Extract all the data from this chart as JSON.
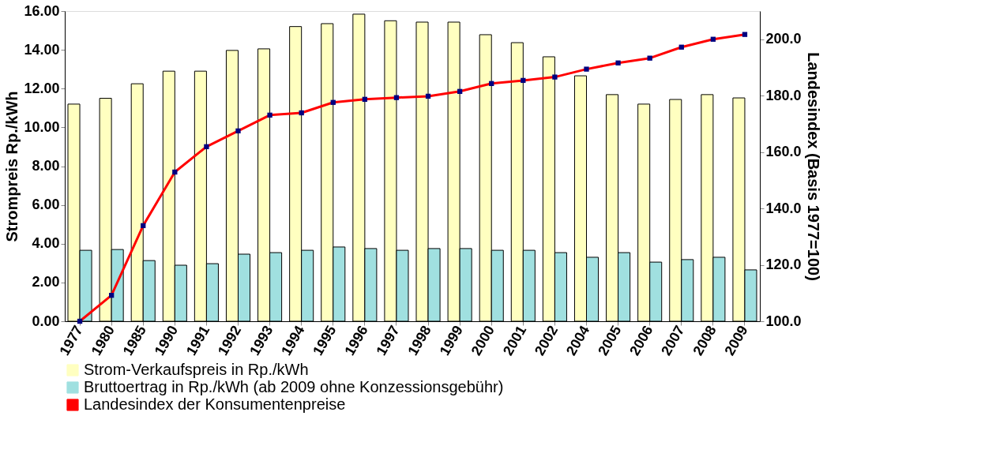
{
  "chart_data": {
    "type": "bar",
    "categories": [
      "1977",
      "1980",
      "1985",
      "1990",
      "1991",
      "1992",
      "1993",
      "1994",
      "1995",
      "1996",
      "1997",
      "1998",
      "1999",
      "2000",
      "2001",
      "2002",
      "2004",
      "2005",
      "2006",
      "2007",
      "2008",
      "2009"
    ],
    "ylabel": "Strompreis Rp./kWh",
    "y2label": "Landesindex (Basis 1977=100)",
    "ylim": [
      0,
      16
    ],
    "yticks": [
      {
        "value": 0,
        "label": "0.00"
      },
      {
        "value": 2,
        "label": "2.00"
      },
      {
        "value": 4,
        "label": "4.00"
      },
      {
        "value": 6,
        "label": "6.00"
      },
      {
        "value": 8,
        "label": "8.00"
      },
      {
        "value": 10,
        "label": "10.00"
      },
      {
        "value": 12,
        "label": "12.00"
      },
      {
        "value": 14,
        "label": "14.00"
      },
      {
        "value": 16,
        "label": "16.00"
      }
    ],
    "y2lim": [
      100,
      210
    ],
    "y2ticks": [
      {
        "value": 100,
        "label": "100.0"
      },
      {
        "value": 120,
        "label": "120.0"
      },
      {
        "value": 140,
        "label": "140.0"
      },
      {
        "value": 160,
        "label": "160.0"
      },
      {
        "value": 180,
        "label": "180.0"
      },
      {
        "value": 200,
        "label": "200.0"
      }
    ],
    "grid": false,
    "legend": "bottom left",
    "marker": "square",
    "line_style": "solid",
    "series": [
      {
        "name": "Strom-Verkaufspreis in Rp./kWh",
        "color": "#ffffc0",
        "values": [
          11.2,
          11.5,
          12.25,
          12.9,
          12.9,
          13.97,
          14.05,
          15.2,
          15.35,
          15.84,
          15.5,
          15.43,
          15.43,
          14.78,
          14.37,
          13.64,
          12.66,
          11.69,
          11.2,
          11.44,
          11.69,
          11.52
        ]
      },
      {
        "name": "Bruttoertrag in Rp./kWh (ab 2009 ohne Konzessionsgebühr)",
        "color": "#a0e0e0",
        "values": [
          3.66,
          3.7,
          3.13,
          2.89,
          2.97,
          3.46,
          3.54,
          3.66,
          3.83,
          3.75,
          3.66,
          3.75,
          3.75,
          3.66,
          3.66,
          3.54,
          3.3,
          3.54,
          3.05,
          3.18,
          3.3,
          2.65
        ]
      },
      {
        "name": "Landesindex der Konsumentenpreise",
        "type": "line",
        "axis": "y2",
        "color": "#ff0000",
        "values": [
          100,
          109.2,
          133.9,
          152.9,
          161.9,
          167.5,
          173.1,
          173.9,
          177.6,
          178.7,
          179.3,
          179.8,
          181.5,
          184.3,
          185.4,
          186.6,
          189.4,
          191.6,
          193.3,
          197.2,
          200,
          201.7
        ]
      }
    ]
  }
}
